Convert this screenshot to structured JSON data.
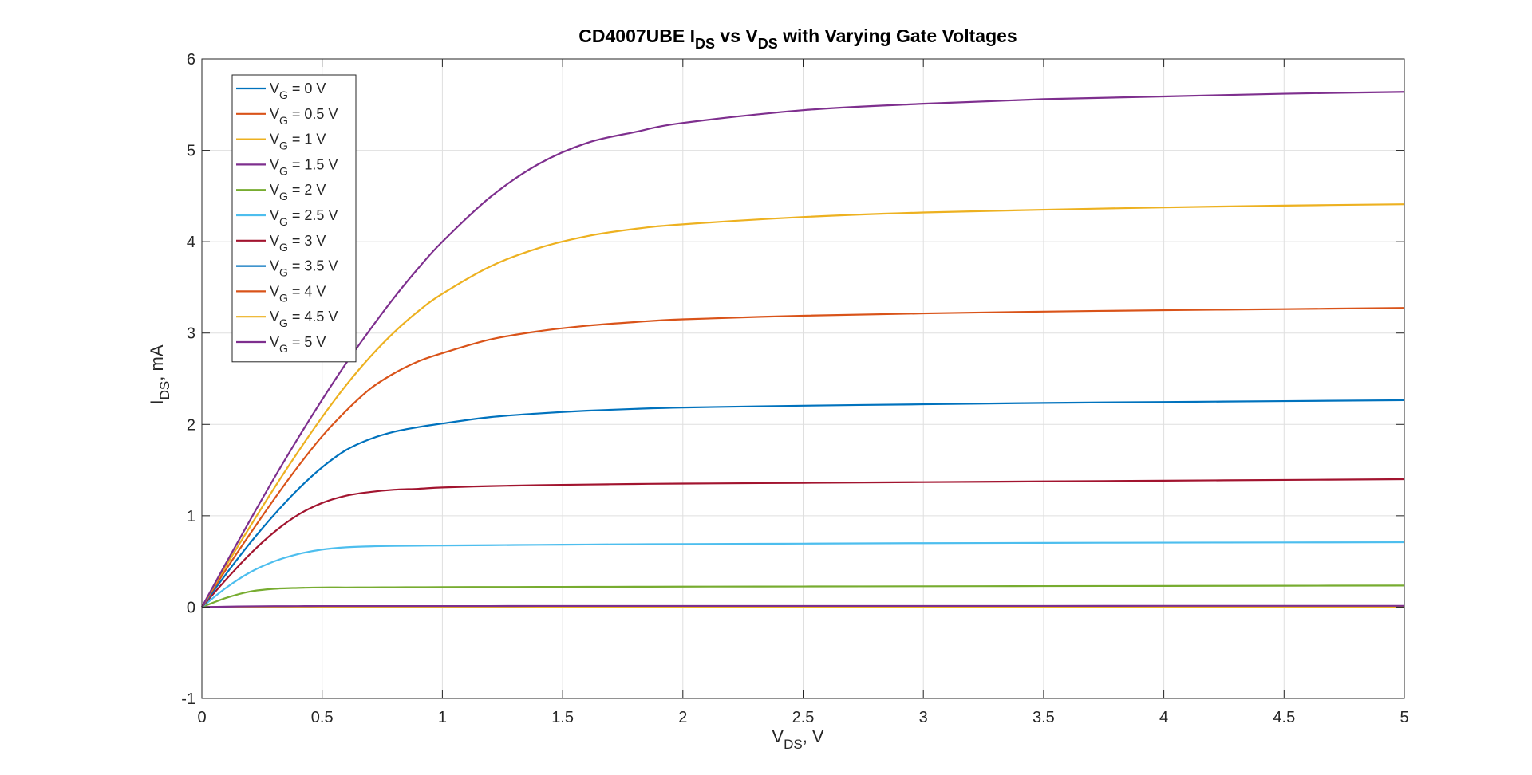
{
  "chart_data": {
    "type": "line",
    "title": {
      "main": "CD4007UBE I",
      "sub1": "DS",
      "mid": " vs V",
      "sub2": "DS",
      "tail": " with Varying Gate Voltages"
    },
    "xlabel": {
      "main": "V",
      "sub": "DS",
      "tail": ", V"
    },
    "ylabel": {
      "main": "I",
      "sub": "DS",
      "tail": ", mA"
    },
    "xlim": [
      0,
      5
    ],
    "ylim": [
      -1,
      6
    ],
    "xticks": [
      0,
      0.5,
      1,
      1.5,
      2,
      2.5,
      3,
      3.5,
      4,
      4.5,
      5
    ],
    "xtick_labels": [
      "0",
      "0.5",
      "1",
      "1.5",
      "2",
      "2.5",
      "3",
      "3.5",
      "4",
      "4.5",
      "5"
    ],
    "yticks": [
      -1,
      0,
      1,
      2,
      3,
      4,
      5,
      6
    ],
    "ytick_labels": [
      "-1",
      "0",
      "1",
      "2",
      "3",
      "4",
      "5",
      "6"
    ],
    "grid": true,
    "legend_position": "top-left",
    "x": [
      0,
      0.1,
      0.2,
      0.3,
      0.4,
      0.5,
      0.6,
      0.7,
      0.8,
      0.9,
      1.0,
      1.2,
      1.4,
      1.6,
      1.8,
      2.0,
      2.5,
      3.0,
      3.5,
      4.0,
      4.5,
      5.0
    ],
    "series": [
      {
        "name": {
          "main": "V",
          "sub": "G",
          "tail": " = 0 V"
        },
        "color": "#0072BD",
        "values": [
          0,
          0,
          0,
          0,
          0,
          0,
          0,
          0,
          0,
          0,
          0,
          0,
          0,
          0,
          0,
          0,
          0,
          0,
          0,
          0,
          0,
          0
        ]
      },
      {
        "name": {
          "main": "V",
          "sub": "G",
          "tail": " = 0.5 V"
        },
        "color": "#D95319",
        "values": [
          0,
          0,
          0,
          0,
          0,
          0,
          0,
          0,
          0,
          0,
          0,
          0,
          0,
          0,
          0,
          0,
          0,
          0,
          0,
          0,
          0,
          0
        ]
      },
      {
        "name": {
          "main": "V",
          "sub": "G",
          "tail": " = 1 V"
        },
        "color": "#EDB120",
        "values": [
          0,
          0,
          0,
          0,
          0,
          0,
          0,
          0,
          0,
          0,
          0,
          0,
          0,
          0,
          0,
          0,
          0,
          0,
          0,
          0,
          0,
          0
        ]
      },
      {
        "name": {
          "main": "V",
          "sub": "G",
          "tail": " = 1.5 V"
        },
        "color": "#7E2F8E",
        "values": [
          0,
          0.005,
          0.008,
          0.01,
          0.011,
          0.012,
          0.012,
          0.012,
          0.012,
          0.012,
          0.012,
          0.012,
          0.013,
          0.013,
          0.013,
          0.013,
          0.013,
          0.013,
          0.013,
          0.014,
          0.014,
          0.014
        ]
      },
      {
        "name": {
          "main": "V",
          "sub": "G",
          "tail": " = 2 V"
        },
        "color": "#77AC30",
        "values": [
          0,
          0.1,
          0.17,
          0.2,
          0.21,
          0.215,
          0.215,
          0.216,
          0.217,
          0.218,
          0.219,
          0.22,
          0.221,
          0.222,
          0.223,
          0.224,
          0.226,
          0.228,
          0.23,
          0.232,
          0.234,
          0.236
        ]
      },
      {
        "name": {
          "main": "V",
          "sub": "G",
          "tail": " = 2.5 V"
        },
        "color": "#4DBEEE",
        "values": [
          0,
          0.21,
          0.38,
          0.5,
          0.58,
          0.63,
          0.655,
          0.665,
          0.67,
          0.672,
          0.675,
          0.678,
          0.682,
          0.685,
          0.688,
          0.69,
          0.695,
          0.7,
          0.703,
          0.706,
          0.708,
          0.71
        ]
      },
      {
        "name": {
          "main": "V",
          "sub": "G",
          "tail": " = 3 V"
        },
        "color": "#A2142F",
        "values": [
          0,
          0.3,
          0.58,
          0.82,
          1.01,
          1.14,
          1.22,
          1.26,
          1.285,
          1.295,
          1.31,
          1.325,
          1.335,
          1.342,
          1.348,
          1.352,
          1.36,
          1.368,
          1.376,
          1.384,
          1.392,
          1.4
        ]
      },
      {
        "name": {
          "main": "V",
          "sub": "G",
          "tail": " = 3.5 V"
        },
        "color": "#0072BD",
        "values": [
          0,
          0.36,
          0.7,
          1.01,
          1.29,
          1.53,
          1.72,
          1.84,
          1.92,
          1.97,
          2.01,
          2.08,
          2.12,
          2.15,
          2.17,
          2.185,
          2.205,
          2.22,
          2.235,
          2.245,
          2.255,
          2.265
        ]
      },
      {
        "name": {
          "main": "V",
          "sub": "G",
          "tail": " = 4 V"
        },
        "color": "#D95319",
        "values": [
          0,
          0.41,
          0.8,
          1.18,
          1.54,
          1.87,
          2.15,
          2.39,
          2.56,
          2.69,
          2.78,
          2.93,
          3.02,
          3.08,
          3.12,
          3.15,
          3.19,
          3.215,
          3.235,
          3.25,
          3.262,
          3.275
        ]
      },
      {
        "name": {
          "main": "V",
          "sub": "G",
          "tail": " = 4.5 V"
        },
        "color": "#EDB120",
        "values": [
          0,
          0.45,
          0.88,
          1.3,
          1.7,
          2.08,
          2.43,
          2.74,
          3.01,
          3.24,
          3.43,
          3.73,
          3.93,
          4.06,
          4.14,
          4.19,
          4.27,
          4.32,
          4.35,
          4.375,
          4.395,
          4.41
        ]
      },
      {
        "name": {
          "main": "V",
          "sub": "G",
          "tail": " = 5 V"
        },
        "color": "#7E2F8E",
        "values": [
          0,
          0.48,
          0.95,
          1.41,
          1.85,
          2.27,
          2.67,
          3.04,
          3.39,
          3.71,
          4.0,
          4.49,
          4.85,
          5.08,
          5.2,
          5.3,
          5.44,
          5.51,
          5.56,
          5.59,
          5.62,
          5.64
        ]
      }
    ]
  }
}
